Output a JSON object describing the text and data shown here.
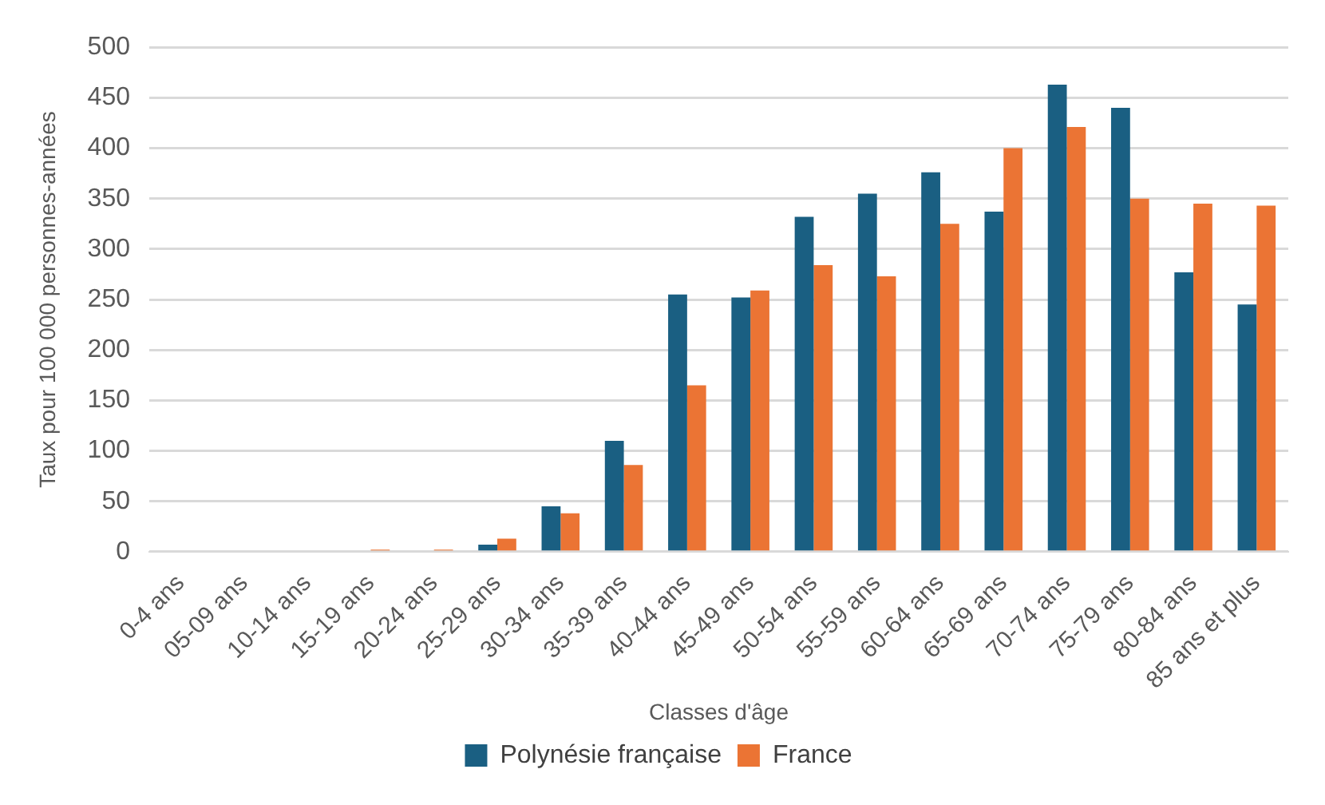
{
  "chart_data": {
    "type": "bar",
    "xlabel": "Classes d'âge",
    "ylabel": "Taux pour 100 000 personnes-années",
    "categories": [
      "0-4 ans",
      "05-09 ans",
      "10-14 ans",
      "15-19 ans",
      "20-24 ans",
      "25-29 ans",
      "30-34 ans",
      "35-39 ans",
      "40-44 ans",
      "45-49 ans",
      "50-54 ans",
      "55-59 ans",
      "60-64 ans",
      "65-69 ans",
      "70-74 ans",
      "75-79 ans",
      "80-84 ans",
      "85 ans et plus"
    ],
    "series": [
      {
        "name": "Polynésie française",
        "color": "#1a5f82",
        "values": [
          0,
          0,
          0,
          0,
          0,
          7,
          45,
          110,
          255,
          252,
          332,
          355,
          376,
          337,
          463,
          440,
          277,
          245
        ]
      },
      {
        "name": "France",
        "color": "#eb7434",
        "values": [
          0,
          0,
          0,
          2,
          2,
          13,
          38,
          86,
          165,
          259,
          284,
          273,
          325,
          400,
          421,
          350,
          345,
          343
        ]
      }
    ],
    "ylim": [
      0,
      500
    ],
    "yticks": [
      0,
      50,
      100,
      150,
      200,
      250,
      300,
      350,
      400,
      450,
      500
    ],
    "grid": "y",
    "legend": "bottom"
  }
}
